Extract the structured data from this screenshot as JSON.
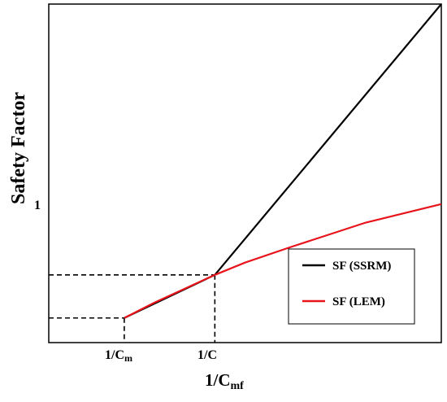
{
  "chart_data": {
    "type": "line",
    "xlabel": "1/Cmf",
    "ylabel": "Safety Factor",
    "grid": false,
    "legend_position": "bottom-right",
    "x_tick_labels": [
      {
        "base": "1/C",
        "sub": "m"
      },
      {
        "base": "1/C",
        "sub": ""
      }
    ],
    "y_tick_labels": [
      "1"
    ],
    "series": [
      {
        "name": "SF (SSRM)",
        "color": "#000000",
        "points": [
          [
            0.88,
            0.86
          ],
          [
            1.0,
            1.0
          ],
          [
            1.3,
            1.88
          ]
        ]
      },
      {
        "name": "SF (LEM)",
        "color": "#e8141b",
        "points": [
          [
            0.88,
            0.86
          ],
          [
            0.92,
            0.91
          ],
          [
            1.0,
            1.0
          ],
          [
            1.04,
            1.04
          ],
          [
            1.1,
            1.09
          ],
          [
            1.15,
            1.13
          ],
          [
            1.2,
            1.17
          ],
          [
            1.3,
            1.23
          ]
        ]
      }
    ],
    "reference_lines": [
      {
        "x": 0.88,
        "y": 0.86
      },
      {
        "x": 1.0,
        "y": 1.0
      }
    ],
    "xlim": [
      0.78,
      1.3
    ],
    "ylim": [
      0.78,
      1.88
    ]
  }
}
